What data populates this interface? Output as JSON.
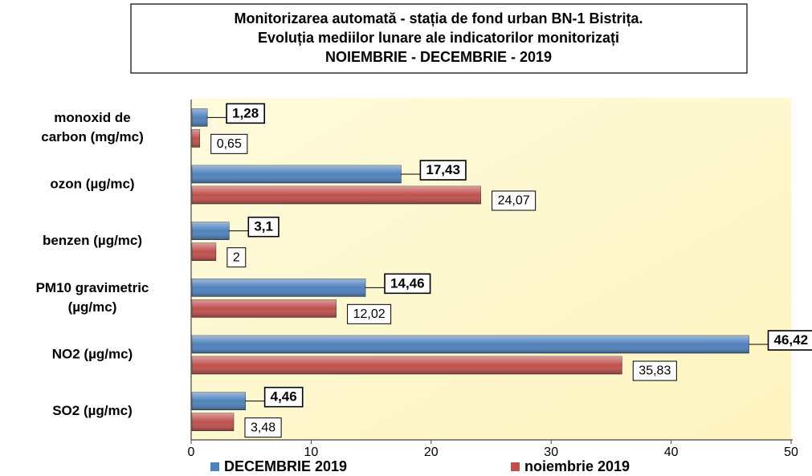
{
  "chart_data": {
    "type": "hbar",
    "title": [
      "Monitorizarea automată  - stația de fond urban BN-1 Bistrița.",
      "Evoluția mediilor lunare ale indicatorilor monitorizați",
      "NOIEMBRIE - DECEMBRIE - 2019"
    ],
    "categories": [
      [
        "monoxid de",
        "carbon (mg/mc)"
      ],
      "ozon (µg/mc)",
      "benzen (µg/mc)",
      [
        "PM10 gravimetric",
        "(µg/mc)"
      ],
      "NO2 (µg/mc)",
      "SO2 (µg/mc)"
    ],
    "series": [
      {
        "name": "DECEMBRIE 2019",
        "color": "#4f81bd",
        "values": [
          1.28,
          17.43,
          3.1,
          14.46,
          46.42,
          4.46
        ],
        "value_labels": [
          "1,28",
          "17,43",
          "3,1",
          "14,46",
          "46,42",
          "4,46"
        ]
      },
      {
        "name": "noiembrie 2019",
        "color": "#c0504d",
        "values": [
          0.65,
          24.07,
          2,
          12.02,
          35.83,
          3.48
        ],
        "value_labels": [
          "0,65",
          "24,07",
          "2",
          "12,02",
          "35,83",
          "3,48"
        ]
      }
    ],
    "xlim": [
      0,
      50
    ],
    "xticks": [
      0,
      10,
      20,
      30,
      40,
      50
    ],
    "legend": "bottom"
  }
}
